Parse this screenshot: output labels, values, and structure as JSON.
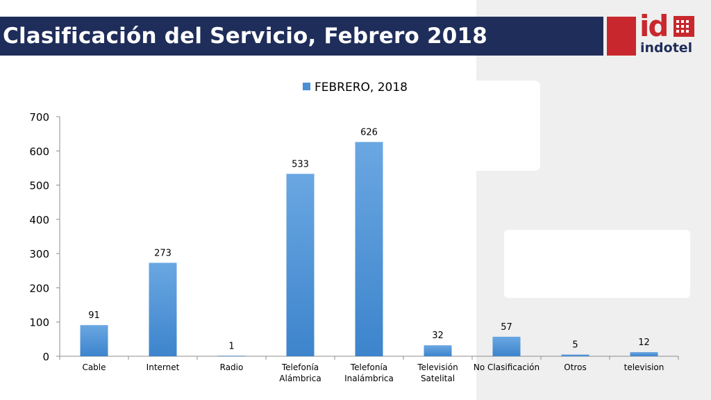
{
  "header": {
    "title": "Clasificación del Servicio, Febrero 2018",
    "logo_id": "id",
    "logo_name": "indotel"
  },
  "colors": {
    "title_bar": "#1f2d5a",
    "logo_red": "#c8282d",
    "bar": "#4a8fd4",
    "background_panel": "#efefef"
  },
  "chart_data": {
    "type": "bar",
    "title": "",
    "xlabel": "",
    "ylabel": "",
    "categories": [
      [
        "Cable"
      ],
      [
        "Internet"
      ],
      [
        "Radio"
      ],
      [
        "Telefonía",
        "Alámbrica"
      ],
      [
        "Telefonía",
        "Inalámbrica"
      ],
      [
        "Televisión",
        "Satelital"
      ],
      [
        "No Clasificación"
      ],
      [
        "Otros"
      ],
      [
        "television"
      ]
    ],
    "series": [
      {
        "name": "FEBRERO, 2018",
        "values": [
          91,
          273,
          1,
          533,
          626,
          32,
          57,
          5,
          12
        ]
      }
    ],
    "ylim": [
      0,
      700
    ],
    "yticks": [
      0,
      100,
      200,
      300,
      400,
      500,
      600,
      700
    ],
    "legend_position": "top",
    "data_labels": true,
    "grid": false
  }
}
